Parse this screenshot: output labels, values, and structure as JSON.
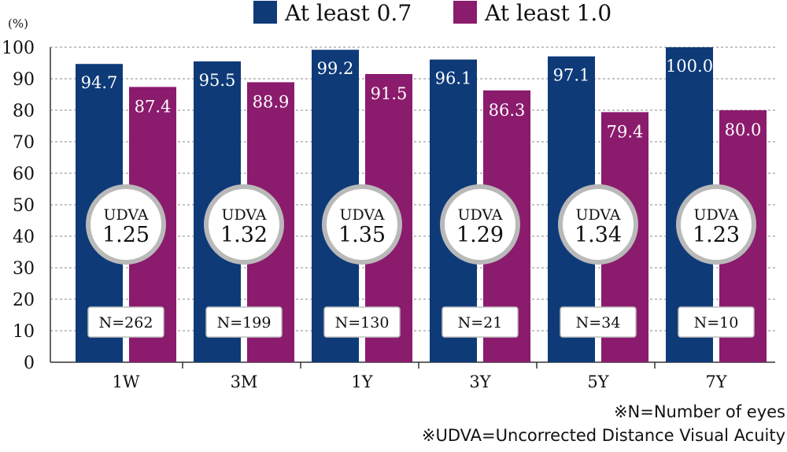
{
  "chart_data": {
    "type": "bar",
    "unit_label": "(%)",
    "categories": [
      "1W",
      "3M",
      "1Y",
      "3Y",
      "5Y",
      "7Y"
    ],
    "series": [
      {
        "name": "At least 0.7",
        "color": "#0e3a78",
        "values": [
          94.7,
          95.5,
          99.2,
          96.1,
          97.1,
          100.0
        ]
      },
      {
        "name": "At least 1.0",
        "color": "#8b1b6d",
        "values": [
          87.4,
          88.9,
          91.5,
          86.3,
          79.4,
          80.0
        ]
      }
    ],
    "udva_label": "UDVA",
    "udva_values": [
      "1.25",
      "1.32",
      "1.35",
      "1.29",
      "1.34",
      "1.23"
    ],
    "n_labels": [
      "N=262",
      "N=199",
      "N=130",
      "N=21",
      "N=34",
      "N=10"
    ],
    "ylim": [
      0,
      100
    ],
    "yticks": [
      0,
      10,
      20,
      30,
      40,
      50,
      60,
      70,
      80,
      90,
      100
    ],
    "grid": "dashed horizontal",
    "legend_position": "top-center"
  },
  "footnotes": {
    "n_note": "※N=Number of eyes",
    "udva_note": "※UDVA=Uncorrected Distance Visual Acuity"
  }
}
